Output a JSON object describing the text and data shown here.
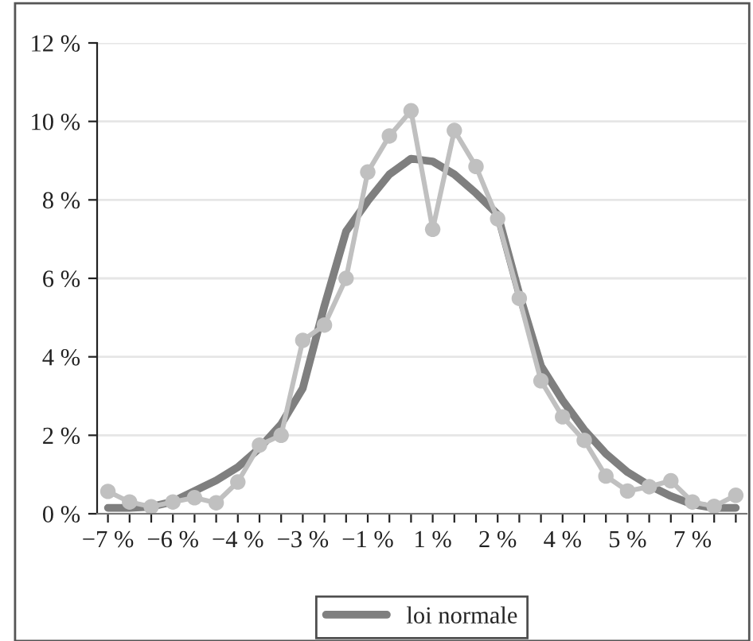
{
  "chart_data": {
    "type": "line",
    "categories": [
      "−7 %",
      null,
      null,
      "−6 %",
      null,
      null,
      "−4 %",
      null,
      null,
      "−3 %",
      null,
      null,
      "−1 %",
      null,
      null,
      "1 %",
      null,
      null,
      "2 %",
      null,
      null,
      "4 %",
      null,
      null,
      "5 %",
      null,
      null,
      "7 %",
      null,
      null
    ],
    "series": [
      {
        "name": "loi normale",
        "color": "#7f7f7f",
        "marker": "none",
        "values": [
          0.15,
          0.15,
          0.18,
          0.31,
          0.58,
          0.85,
          1.19,
          1.67,
          2.28,
          3.2,
          5.3,
          7.2,
          7.97,
          8.65,
          9.05,
          8.98,
          8.65,
          8.17,
          7.63,
          5.6,
          3.77,
          2.89,
          2.14,
          1.53,
          1.06,
          0.72,
          0.45,
          0.24,
          0.15,
          0.15
        ]
      },
      {
        "color": "#c0c0c0",
        "marker": "circle",
        "values": [
          0.57,
          0.3,
          0.18,
          0.3,
          0.41,
          0.28,
          0.81,
          1.75,
          2.0,
          4.42,
          4.81,
          6.0,
          8.71,
          9.63,
          10.27,
          7.25,
          9.77,
          8.85,
          7.52,
          5.49,
          3.39,
          2.47,
          1.87,
          0.96,
          0.58,
          0.69,
          0.84,
          0.3,
          0.19,
          0.47
        ]
      }
    ],
    "ylim": [
      0,
      12
    ],
    "yticks": [
      {
        "value": 0,
        "label": "0 %"
      },
      {
        "value": 2,
        "label": "2 %"
      },
      {
        "value": 4,
        "label": "4 %"
      },
      {
        "value": 6,
        "label": "6 %"
      },
      {
        "value": 8,
        "label": "8 %"
      },
      {
        "value": 10,
        "label": "10 %"
      },
      {
        "value": 12,
        "label": "12 %"
      }
    ],
    "grid": "y",
    "legend": "bottom"
  }
}
